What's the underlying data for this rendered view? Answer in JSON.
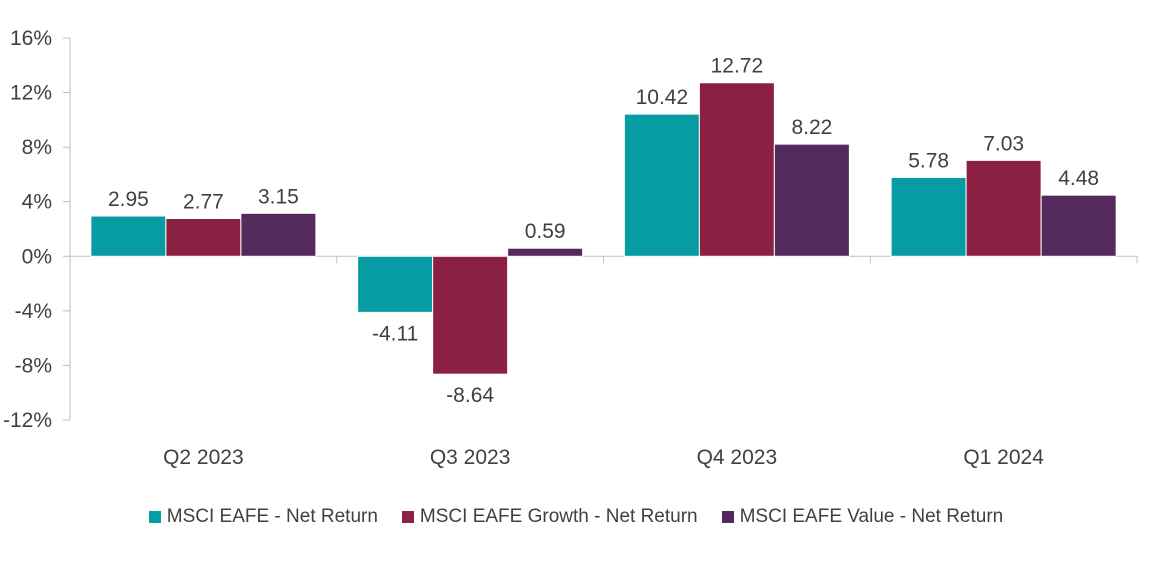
{
  "chart_data": {
    "type": "bar",
    "categories": [
      "Q2 2023",
      "Q3 2023",
      "Q4 2023",
      "Q1 2024"
    ],
    "series": [
      {
        "name": "MSCI EAFE - Net Return",
        "values": [
          2.95,
          -4.11,
          10.42,
          5.78
        ],
        "color": "#079BA3",
        "labels": [
          "2.95",
          "-4.11",
          "10.42",
          "5.78"
        ]
      },
      {
        "name": "MSCI EAFE Growth - Net Return",
        "values": [
          2.77,
          -8.64,
          12.72,
          7.03
        ],
        "color": "#8B2142",
        "labels": [
          "2.77",
          "-8.64",
          "12.72",
          "7.03"
        ]
      },
      {
        "name": "MSCI EAFE Value - Net Return",
        "values": [
          3.15,
          0.59,
          8.22,
          4.48
        ],
        "color": "#54295C",
        "labels": [
          "3.15",
          "0.59",
          "8.22",
          "4.48"
        ]
      }
    ],
    "y_ticks": [
      16,
      12,
      8,
      4,
      0,
      -4,
      -8,
      -12
    ],
    "y_tick_labels": [
      "16%",
      "12%",
      "8%",
      "4%",
      "0%",
      "-4%",
      "-8%",
      "-12%"
    ],
    "ylim": [
      -12,
      16
    ],
    "grid": false,
    "legend_position": "bottom"
  }
}
